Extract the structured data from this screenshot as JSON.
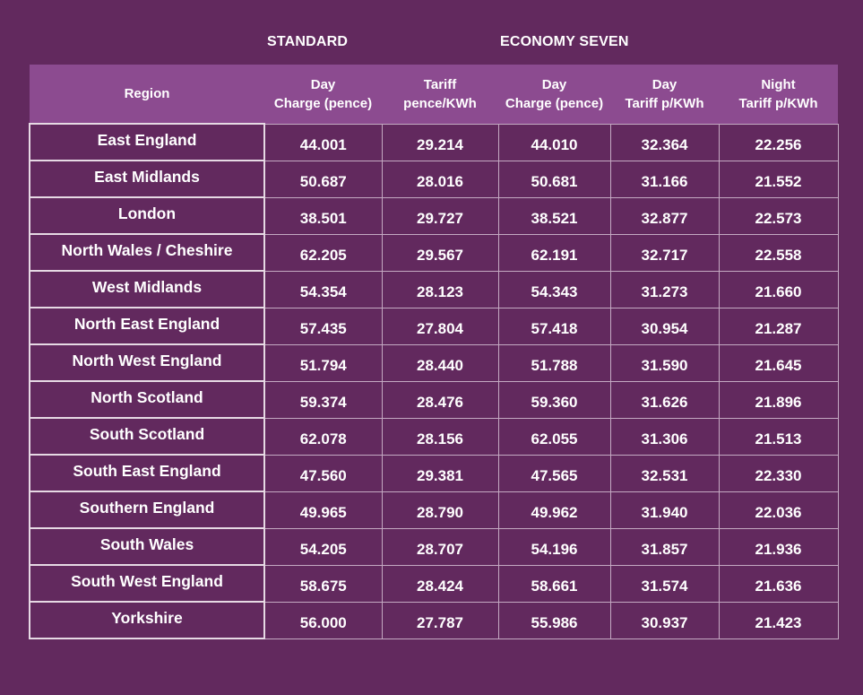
{
  "groups": {
    "standard": "STANDARD",
    "economy_seven": "ECONOMY SEVEN"
  },
  "columns": [
    [
      "Region"
    ],
    [
      "Day",
      "Charge (pence)"
    ],
    [
      "Tariff",
      "pence/KWh"
    ],
    [
      "Day",
      "Charge (pence)"
    ],
    [
      "Day",
      "Tariff p/KWh"
    ],
    [
      "Night",
      "Tariff p/KWh"
    ]
  ],
  "rows": [
    [
      "East England",
      "44.001",
      "29.214",
      "44.010",
      "32.364",
      "22.256"
    ],
    [
      "East Midlands",
      "50.687",
      "28.016",
      "50.681",
      "31.166",
      "21.552"
    ],
    [
      "London",
      "38.501",
      "29.727",
      "38.521",
      "32.877",
      "22.573"
    ],
    [
      "North Wales / Cheshire",
      "62.205",
      "29.567",
      "62.191",
      "32.717",
      "22.558"
    ],
    [
      "West Midlands",
      "54.354",
      "28.123",
      "54.343",
      "31.273",
      "21.660"
    ],
    [
      "North East England",
      "57.435",
      "27.804",
      "57.418",
      "30.954",
      "21.287"
    ],
    [
      "North West England",
      "51.794",
      "28.440",
      "51.788",
      "31.590",
      "21.645"
    ],
    [
      "North Scotland",
      "59.374",
      "28.476",
      "59.360",
      "31.626",
      "21.896"
    ],
    [
      "South Scotland",
      "62.078",
      "28.156",
      "62.055",
      "31.306",
      "21.513"
    ],
    [
      "South East England",
      "47.560",
      "29.381",
      "47.565",
      "32.531",
      "22.330"
    ],
    [
      "Southern England",
      "49.965",
      "28.790",
      "49.962",
      "31.940",
      "22.036"
    ],
    [
      "South Wales",
      "54.205",
      "28.707",
      "54.196",
      "31.857",
      "21.936"
    ],
    [
      "South West England",
      "58.675",
      "28.424",
      "58.661",
      "31.574",
      "21.636"
    ],
    [
      "Yorkshire",
      "56.000",
      "27.787",
      "55.986",
      "30.937",
      "21.423"
    ]
  ],
  "colors": {
    "background": "#62295e",
    "header_band": "#8c4b90",
    "text": "#ffffff",
    "cell_border": "#c4a9c2"
  }
}
